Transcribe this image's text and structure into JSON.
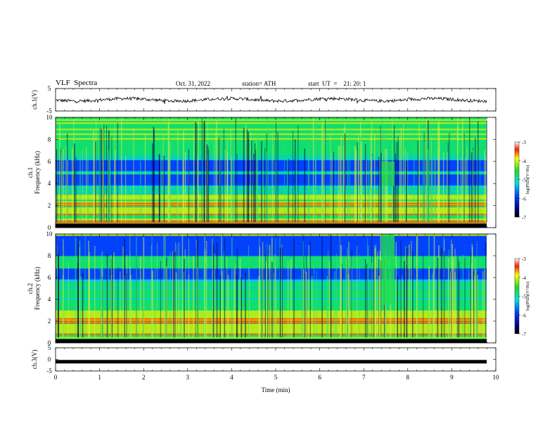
{
  "header": {
    "title": "VLF  Spectra",
    "date": "Oct. 31, 2022",
    "station": "station= ATH",
    "start": "start  UT  =    21: 20: 1"
  },
  "chart_data": [
    {
      "type": "line",
      "panel": "ch1-waveform",
      "ylabel": "ch.1(V)",
      "ylim": [
        -5,
        5
      ],
      "yticks": [
        "5",
        "-5"
      ],
      "x_range_min": [
        0,
        9.8
      ],
      "approx_level": 0,
      "amplitude": 0.5
    },
    {
      "type": "heatmap",
      "panel": "ch1-spectrogram",
      "ylabel_top": "ch.1",
      "ylabel": "Frequency  (kHz)",
      "ylim": [
        0,
        10
      ],
      "yticks": [
        "0",
        "2",
        "4",
        "6",
        "8",
        "10"
      ],
      "colorbar": {
        "label": "log(PSD)(V²/Hz)",
        "range": [
          -7,
          -3
        ],
        "ticks": [
          "-3",
          "-4",
          "-5",
          "-6",
          "-7"
        ]
      },
      "dark_bands_kHz": [
        [
          3.8,
          4.8
        ],
        [
          5.2,
          6.2
        ]
      ],
      "strong_lines_kHz": [
        0.4,
        0.6,
        1.2,
        2.0,
        2.2
      ],
      "event": {
        "t_min": [
          7.4,
          7.7
        ],
        "f_kHz": [
          3.8,
          6.0
        ]
      }
    },
    {
      "type": "heatmap",
      "panel": "ch2-spectrogram",
      "ylabel_top": "ch.2",
      "ylabel": "Frequency  (kHz)",
      "ylim": [
        0,
        10
      ],
      "yticks": [
        "0",
        "2",
        "4",
        "6",
        "8",
        "10"
      ],
      "colorbar": {
        "label": "log(PSD)(V²/Hz)",
        "range": [
          -7,
          -3
        ],
        "ticks": [
          "-3",
          "-4",
          "-5",
          "-6",
          "-7"
        ]
      },
      "dark_bands_kHz": [
        [
          5.8,
          6.8
        ],
        [
          8.0,
          9.8
        ]
      ],
      "strong_lines_kHz": [
        0.8,
        1.8,
        2.0,
        2.2
      ],
      "event": {
        "t_min": [
          7.4,
          7.7
        ],
        "f_kHz": [
          3.5,
          10
        ]
      }
    },
    {
      "type": "line",
      "panel": "ch3-waveform",
      "ylabel": "ch.3(V)",
      "ylim": [
        -5,
        5
      ],
      "yticks": [
        "5",
        "0",
        "-5"
      ],
      "x_range_min": [
        0,
        9.8
      ],
      "approx_level": -1
    }
  ],
  "xaxis": {
    "label": "Time  (min)",
    "ticks": [
      "0",
      "1",
      "2",
      "3",
      "4",
      "5",
      "6",
      "7",
      "8",
      "9",
      "10"
    ],
    "xlim": [
      0,
      10
    ]
  }
}
